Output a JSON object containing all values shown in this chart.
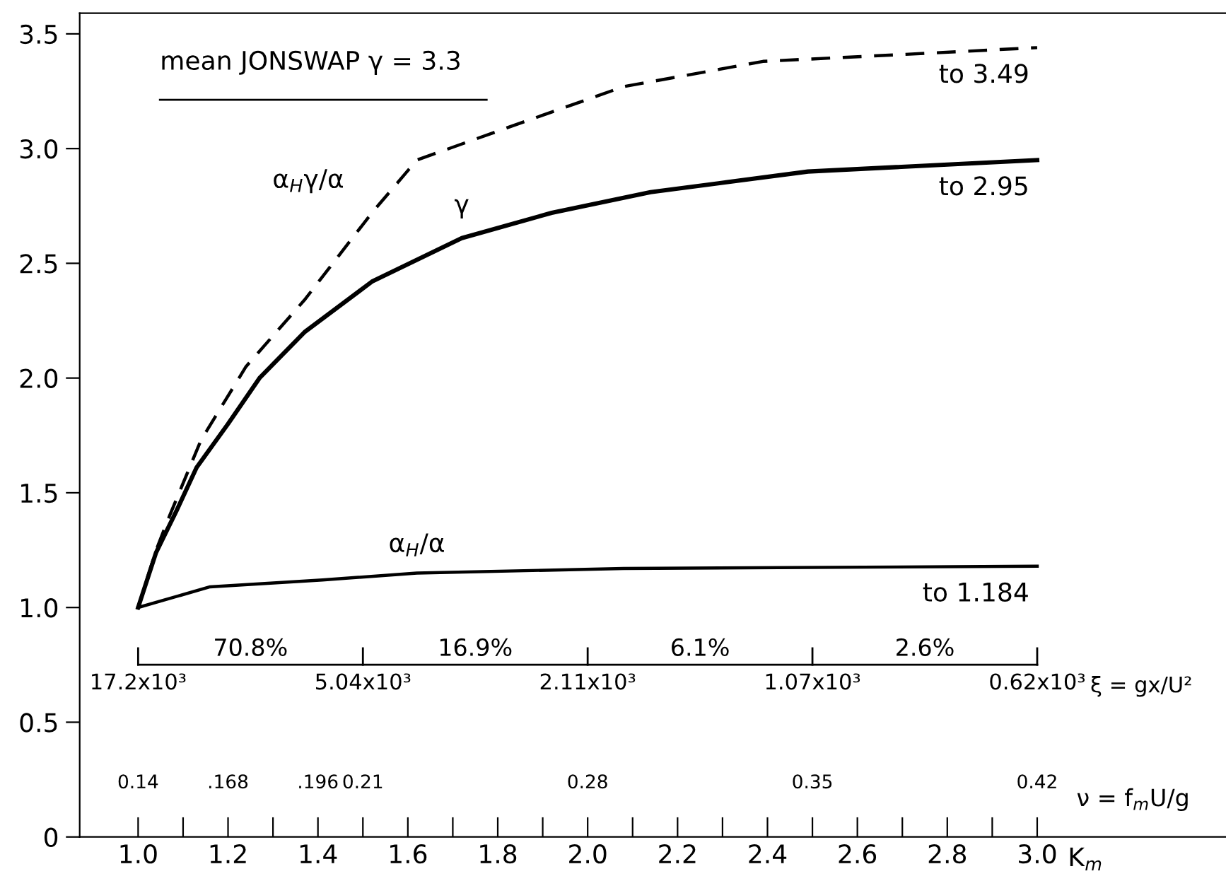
{
  "chart_data": {
    "type": "line",
    "title": "mean JONSWAP γ = 3.3",
    "xlabel": "K$_{m}$",
    "x2label": "ν = f$_{m}$U/g",
    "xlim": [
      0.87,
      3.42
    ],
    "ylim": [
      0,
      3.59
    ],
    "x2lim": [
      0.1218,
      0.4788
    ],
    "yticks": [
      0,
      0.5,
      {
        "value": 1.0,
        "label": "1.0"
      },
      1.5,
      {
        "value": 2.0,
        "label": "2.0"
      },
      2.5,
      {
        "value": 3.0,
        "label": "3.0"
      },
      3.5
    ],
    "xticks": [
      {
        "value": 1.0,
        "label": "1.0"
      },
      {
        "value": 1.1,
        "label": null
      },
      1.2,
      {
        "value": 1.3,
        "label": null
      },
      1.4,
      {
        "value": 1.5,
        "label": null
      },
      1.6,
      {
        "value": 1.7,
        "label": null
      },
      1.8,
      {
        "value": 1.9,
        "label": null
      },
      {
        "value": 2.0,
        "label": "2.0"
      },
      {
        "value": 2.1,
        "label": null
      },
      2.2,
      {
        "value": 2.3,
        "label": null
      },
      2.4,
      {
        "value": 2.5,
        "label": null
      },
      2.6,
      {
        "value": 2.7,
        "label": null
      },
      2.8,
      {
        "value": 2.9,
        "label": null
      },
      {
        "value": 3.0,
        "label": "3.0"
      }
    ],
    "x2ticks": [
      0.14,
      {
        "value": 0.168,
        "label": ".168"
      },
      {
        "value": 0.196,
        "label": ".196"
      },
      0.21,
      0.28,
      0.35,
      0.42
    ],
    "grid": false,
    "legend": false,
    "marker": "none",
    "series": [
      {
        "name": "α$_{H}$γ/α",
        "color": "#000000",
        "line_style": "dashed",
        "x": [
          1.0,
          1.04,
          1.07,
          1.14,
          1.24,
          1.37,
          1.52,
          1.62,
          1.82,
          2.08,
          2.39,
          2.7,
          3.0
        ],
        "values": [
          1.0,
          1.25,
          1.4,
          1.73,
          2.05,
          2.34,
          2.72,
          2.95,
          3.09,
          3.27,
          3.38,
          3.41,
          3.44
        ]
      },
      {
        "name": "γ",
        "color": "#000000",
        "line_style": "solid",
        "x": [
          1.0,
          1.04,
          1.085,
          1.13,
          1.2,
          1.27,
          1.37,
          1.52,
          1.72,
          1.92,
          2.14,
          2.49,
          3.0
        ],
        "values": [
          1.0,
          1.24,
          1.42,
          1.61,
          1.8,
          2.0,
          2.2,
          2.42,
          2.61,
          2.72,
          2.81,
          2.9,
          2.95
        ]
      },
      {
        "name": "α$_{H}$/α",
        "color": "#000000",
        "line_style": "solid",
        "x": [
          1.0,
          1.16,
          1.41,
          1.62,
          2.08,
          3.0
        ],
        "values": [
          1.0,
          1.09,
          1.12,
          1.15,
          1.17,
          1.18
        ]
      }
    ],
    "annotations": [
      "to 3.49",
      "to 2.95",
      "to 1.184",
      "17.2x10³",
      "5.04x10³",
      "2.11x10³",
      "1.07x10³",
      "0.62x10³",
      "70.8%",
      "16.9%",
      "6.1%",
      "2.6%",
      "ξ = gx/U²"
    ]
  }
}
